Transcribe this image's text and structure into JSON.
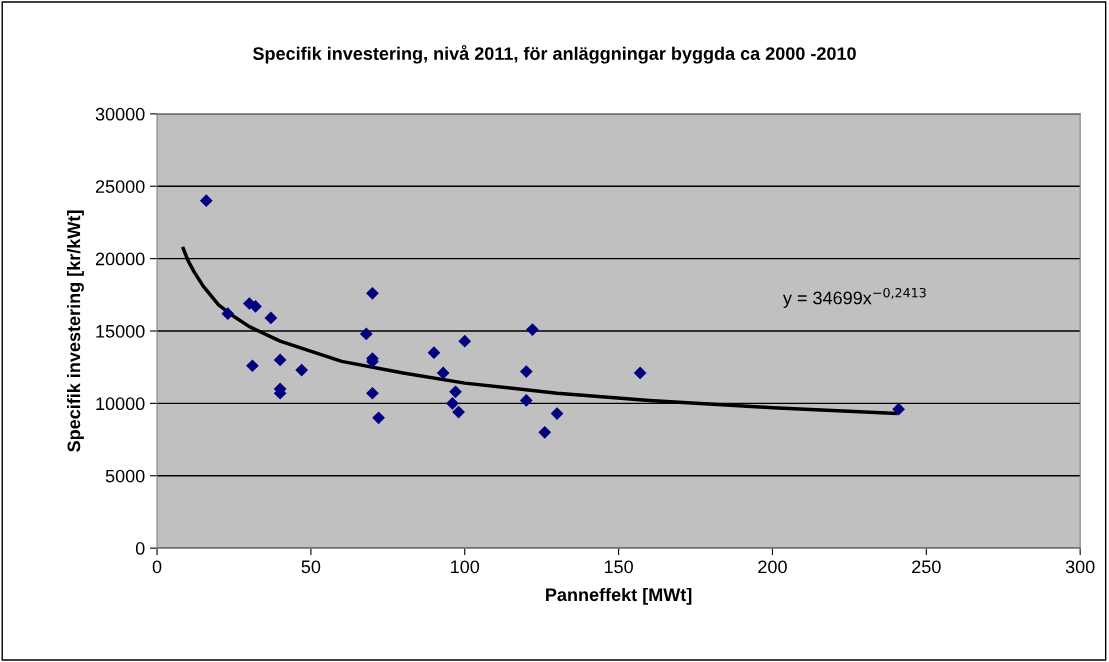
{
  "chart_data": {
    "type": "scatter",
    "title": "Specifik investering, nivå 2011, för anläggningar byggda ca 2000 -2010",
    "xlabel": "Panneffekt [MWt]",
    "ylabel": "Specifik investering [kr/kWt]",
    "annotations": [
      "y = 34699x$^{−0,2413}$"
    ],
    "xlim": [
      0,
      300
    ],
    "xticks": [
      0,
      50,
      100,
      150,
      200,
      250,
      300
    ],
    "ylim": [
      0,
      30000
    ],
    "yticks": [
      0,
      5000,
      10000,
      15000,
      20000,
      25000,
      30000
    ],
    "grid": "y",
    "legend": false,
    "marker": "diamond",
    "series": [
      {
        "color": "#000080",
        "x": [
          16,
          23,
          30,
          32,
          37,
          31,
          40,
          40,
          40,
          47,
          70,
          68,
          70,
          70,
          70,
          72,
          90,
          93,
          100,
          97,
          96,
          98,
          122,
          120,
          120,
          126,
          130,
          157,
          241
        ],
        "values": [
          24000,
          16200,
          16900,
          16700,
          15900,
          12600,
          13000,
          11000,
          10700,
          12300,
          17600,
          14800,
          13100,
          12900,
          10700,
          9000,
          13500,
          12100,
          14300,
          10800,
          10000,
          9400,
          15100,
          12200,
          10200,
          8000,
          9300,
          12100,
          9600
        ]
      },
      {
        "type": "line",
        "color": "#000000",
        "line_style": "solid",
        "marker": "none",
        "x": [
          8.5,
          10,
          12,
          15,
          20,
          25,
          30,
          40,
          60,
          80,
          100,
          130,
          160,
          200,
          240
        ],
        "values": [
          20700,
          19900,
          19100,
          18100,
          16800,
          16000,
          15300,
          14300,
          12900,
          12100,
          11400,
          10700,
          10200,
          9700,
          9300
        ]
      }
    ]
  }
}
